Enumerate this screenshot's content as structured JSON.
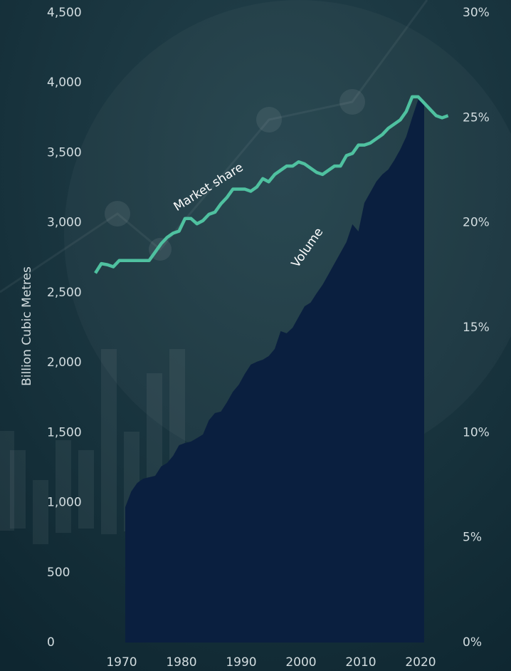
{
  "chart_data": {
    "type": "area",
    "y_axis_label": "Billion Cubic Metres",
    "xlim": [
      1963,
      2026
    ],
    "xticks": [
      1970,
      1980,
      1990,
      2000,
      2010,
      2020
    ],
    "ylim": [
      0,
      4500
    ],
    "yticks": [
      0,
      500,
      {
        "value": 1000,
        "label": "1,000"
      },
      {
        "value": 1500,
        "label": "1,500"
      },
      {
        "value": 2000,
        "label": "2,000"
      },
      {
        "value": 2500,
        "label": "2,500"
      },
      {
        "value": 3000,
        "label": "3,000"
      },
      {
        "value": 3500,
        "label": "3,500"
      },
      {
        "value": 4000,
        "label": "4,000"
      },
      {
        "value": 4500,
        "label": "4,500"
      }
    ],
    "y2lim": [
      0,
      30
    ],
    "y2ticks": [
      {
        "value": 0,
        "label": "0%"
      },
      {
        "value": 5,
        "label": "5%"
      },
      {
        "value": 10,
        "label": "10%"
      },
      {
        "value": 15,
        "label": "15%"
      },
      {
        "value": 20,
        "label": "20%"
      },
      {
        "value": 25,
        "label": "25%"
      },
      {
        "value": 30,
        "label": "30%"
      }
    ],
    "series": [
      {
        "name": "Volume",
        "type": "area",
        "color": "#0a1f3f",
        "x": [
          1970,
          1971,
          1972,
          1973,
          1974,
          1975,
          1976,
          1977,
          1978,
          1979,
          1980,
          1981,
          1982,
          1983,
          1984,
          1985,
          1986,
          1987,
          1988,
          1989,
          1990,
          1991,
          1992,
          1993,
          1994,
          1995,
          1996,
          1997,
          1998,
          1999,
          2000,
          2001,
          2002,
          2003,
          2004,
          2005,
          2006,
          2007,
          2008,
          2009,
          2010,
          2011,
          2012,
          2013,
          2014,
          2015,
          2016,
          2017,
          2018,
          2019,
          2020
        ],
        "values": [
          967,
          1079,
          1140,
          1171,
          1181,
          1191,
          1258,
          1283,
          1334,
          1410,
          1426,
          1436,
          1461,
          1487,
          1589,
          1640,
          1650,
          1716,
          1792,
          1843,
          1920,
          1986,
          2006,
          2021,
          2047,
          2098,
          2225,
          2210,
          2250,
          2327,
          2403,
          2429,
          2495,
          2556,
          2632,
          2709,
          2785,
          2862,
          2989,
          2938,
          3142,
          3218,
          3294,
          3345,
          3381,
          3447,
          3523,
          3615,
          3752,
          3880,
          3854
        ]
      },
      {
        "name": "Market share",
        "type": "line",
        "axis": "y2",
        "color": "#4fc1a0",
        "x": [
          1965,
          1966,
          1967,
          1968,
          1969,
          1970,
          1971,
          1972,
          1973,
          1974,
          1975,
          1976,
          1977,
          1978,
          1979,
          1980,
          1981,
          1982,
          1983,
          1984,
          1985,
          1986,
          1987,
          1988,
          1989,
          1990,
          1991,
          1992,
          1993,
          1994,
          1995,
          1996,
          1997,
          1998,
          1999,
          2000,
          2001,
          2002,
          2003,
          2004,
          2005,
          2006,
          2007,
          2008,
          2009,
          2010,
          2011,
          2012,
          2013,
          2014,
          2015,
          2016,
          2017,
          2018,
          2019,
          2020,
          2021,
          2022,
          2023,
          2024
        ],
        "values": [
          17.6,
          18.05,
          18.0,
          17.9,
          18.2,
          18.2,
          18.2,
          18.2,
          18.2,
          18.2,
          18.6,
          19.0,
          19.3,
          19.5,
          19.6,
          20.2,
          20.2,
          19.95,
          20.1,
          20.4,
          20.5,
          20.9,
          21.2,
          21.6,
          21.6,
          21.6,
          21.5,
          21.7,
          22.1,
          21.95,
          22.3,
          22.5,
          22.7,
          22.7,
          22.9,
          22.8,
          22.6,
          22.4,
          22.3,
          22.5,
          22.7,
          22.7,
          23.2,
          23.3,
          23.7,
          23.7,
          23.8,
          24.0,
          24.2,
          24.5,
          24.7,
          24.9,
          25.3,
          26.0,
          26.0,
          25.7,
          25.4,
          25.1,
          25.0,
          25.1
        ]
      }
    ],
    "annotations": [
      {
        "text": "Market share"
      },
      {
        "text": "Volume"
      }
    ]
  }
}
